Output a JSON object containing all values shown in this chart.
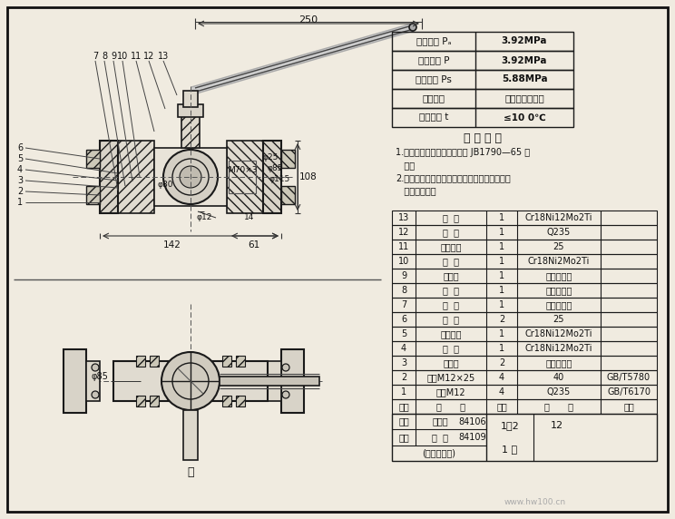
{
  "bg_color": "#f0ebe0",
  "line_color": "#1a1a1a",
  "pressure_table_rows": [
    [
      "公称压力 Pₐ",
      "3.92MPa"
    ],
    [
      "密封压力 P",
      "3.92MPa"
    ],
    [
      "试验压力 Ps",
      "5.88MPa"
    ],
    [
      "适用介质",
      "醋酸磷酸浓硫酸"
    ],
    [
      "适用温度 t",
      "≤10 0℃"
    ]
  ],
  "tech_req_title": "技 术 要 求",
  "tech_req_lines": [
    "1.制造与验收技术条件应符合 JB1790—65 的",
    "   规定",
    "2.不锈锂材料进厂后做化学分析的腑蚀性试验，",
    "   合格后方投产"
  ],
  "parts_rows": [
    [
      "13",
      "阀  杆",
      "1",
      "Cr18Ni12Mo2Ti",
      ""
    ],
    [
      "12",
      "扬  手",
      "1",
      "Q235",
      ""
    ],
    [
      "11",
      "蝶纹压环",
      "1",
      "25",
      ""
    ],
    [
      "10",
      "阀  体",
      "1",
      "Cr18Ni2Mo2Ti",
      ""
    ],
    [
      "9",
      "密封环",
      "1",
      "聚四氟乙烯",
      ""
    ],
    [
      "8",
      "帯  环",
      "1",
      "聚四氟乙烯",
      ""
    ],
    [
      "7",
      "帯  片",
      "1",
      "聚四氟乙烯",
      ""
    ],
    [
      "6",
      "法  兰",
      "2",
      "25",
      ""
    ],
    [
      "5",
      "阀体接头",
      "1",
      "Cr18Ni12Mo2Ti",
      ""
    ],
    [
      "4",
      "球  心",
      "1",
      "Cr18Ni12Mo2Ti",
      ""
    ],
    [
      "3",
      "密封圈",
      "2",
      "聚四氟乙烯",
      ""
    ],
    [
      "2",
      "耗柱M12×25",
      "4",
      "40",
      "GB/T5780"
    ],
    [
      "1",
      "耗母M12",
      "4",
      "Q235",
      "GB/T6170"
    ]
  ],
  "parts_headers": [
    "序号",
    "名      称",
    "数量",
    "材      料",
    "备注"
  ],
  "title_block": {
    "row1": [
      "制图",
      "王光明",
      "84106"
    ],
    "row2": [
      "校核",
      "向  中",
      "84109"
    ],
    "row3": [
      "(校名、班号)"
    ],
    "scale": "1：2",
    "total": "1 张",
    "num": "12"
  }
}
